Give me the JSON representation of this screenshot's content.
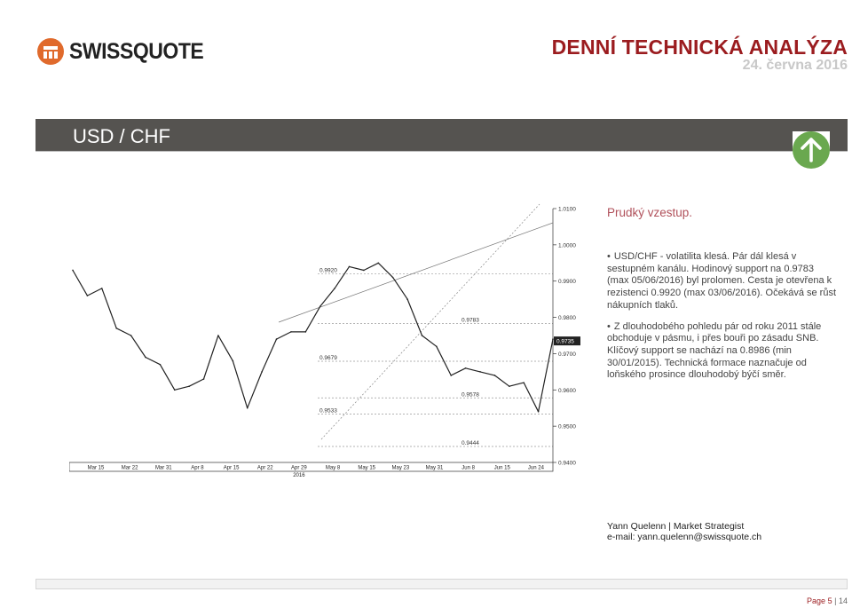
{
  "brand": {
    "name": "SWISSQUOTE",
    "logo_color": "#e06a2c"
  },
  "header": {
    "title": "DENNÍ TECHNICKÁ ANALÝZA",
    "date": "24. června 2016"
  },
  "section": {
    "pair": "USD / CHF",
    "trend_icon": "arrow-up-icon",
    "trend_color": "#6aa84f"
  },
  "analysis": {
    "headline": "Prudký vzestup.",
    "bullets": [
      "USD/CHF - volatilita klesá. Pár dál klesá v sestupném kanálu. Hodinový support na 0.9783 (max 05/06/2016) byl prolomen. Cesta je otevřena k rezistenci 0.9920 (max 03/06/2016). Očekává se růst nákupních tlaků.",
      "Z dlouhodobého pohledu pár od roku 2011 stále obchoduje v pásmu, i přes bouři po zásadu SNB. Klíčový support se nachází na 0.8986 (min 30/01/2015). Technická formace naznačuje od loňského prosince dlouhodobý býčí směr."
    ]
  },
  "author": {
    "line": "Yann Quelenn | Market Strategist",
    "email": "e-mail: yann.quelenn@swissquote.ch"
  },
  "footer": {
    "page_label": "Page",
    "page": "5",
    "separator": "|",
    "total": "14"
  },
  "chart_data": {
    "type": "line",
    "title": "",
    "xlabel": "",
    "ylabel": "",
    "ylim": [
      0.94,
      1.01
    ],
    "x_ticks": [
      "Mar 15",
      "Mar 22",
      "Mar 31",
      "Apr 8",
      "Apr 15",
      "Apr 22",
      "Apr 29",
      "May 8",
      "May 15",
      "May 23",
      "May 31",
      "Jun 8",
      "Jun 15",
      "Jun 24"
    ],
    "year_label": "2016",
    "y_ticks": [
      "1.0100",
      "1.0000",
      "0.9900",
      "0.9800",
      "0.9700",
      "0.9600",
      "0.9500",
      "0.9400"
    ],
    "last_price": "0.9735",
    "levels": [
      {
        "label": "0.9920",
        "value": 0.992
      },
      {
        "label": "0.9783",
        "value": 0.9783
      },
      {
        "label": "0.9679",
        "value": 0.9679
      },
      {
        "label": "0.9578",
        "value": 0.9578
      },
      {
        "label": "0.9533",
        "value": 0.9533
      },
      {
        "label": "0.9444",
        "value": 0.9444
      }
    ],
    "series": [
      {
        "x": [
          "Mar 15",
          "Mar 18",
          "Mar 22",
          "Mar 25",
          "Mar 31",
          "Apr 4",
          "Apr 8",
          "Apr 12",
          "Apr 15",
          "Apr 19",
          "Apr 22",
          "Apr 26",
          "Apr 29",
          "May 3",
          "May 6",
          "May 10",
          "May 13",
          "May 17",
          "May 20",
          "May 24",
          "May 27",
          "May 31",
          "Jun 2",
          "Jun 3",
          "Jun 6",
          "Jun 8",
          "Jun 10",
          "Jun 13",
          "Jun 15",
          "Jun 17",
          "Jun 20",
          "Jun 22",
          "Jun 23",
          "Jun 24"
        ],
        "values": [
          0.993,
          0.986,
          0.988,
          0.977,
          0.975,
          0.969,
          0.967,
          0.96,
          0.961,
          0.963,
          0.975,
          0.968,
          0.955,
          0.965,
          0.974,
          0.976,
          0.976,
          0.983,
          0.988,
          0.994,
          0.993,
          0.995,
          0.991,
          0.985,
          0.975,
          0.972,
          0.964,
          0.966,
          0.965,
          0.964,
          0.961,
          0.962,
          0.954,
          0.974
        ]
      }
    ],
    "line_color": "#222222"
  }
}
